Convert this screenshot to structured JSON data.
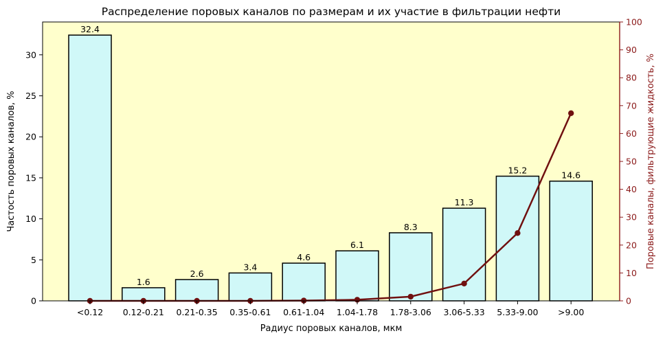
{
  "chart_data": {
    "type": "bar",
    "title": "Распределение поровых каналов по размерам и их участие в фильтрации нефти",
    "xlabel": "Радиус поровых каналов, мкм",
    "ylabel": "Частость поровых каналов, %",
    "y2label": "Поровые каналы, фильтрующие жидкость, %",
    "categories": [
      "<0.12",
      "0.12-0.21",
      "0.21-0.35",
      "0.35-0.61",
      "0.61-1.04",
      "1.04-1.78",
      "1.78-3.06",
      "3.06-5.33",
      "5.33-9.00",
      ">9.00"
    ],
    "bar_labels": [
      "32.4",
      "1.6",
      "2.6",
      "3.4",
      "4.6",
      "6.1",
      "8.3",
      "11.3",
      "15.2",
      "14.6"
    ],
    "ylim": [
      0,
      34
    ],
    "yticks": [
      "0",
      "5",
      "10",
      "15",
      "20",
      "25",
      "30"
    ],
    "y2lim": [
      0,
      100
    ],
    "y2ticks": [
      "0",
      "10",
      "20",
      "30",
      "40",
      "50",
      "60",
      "70",
      "80",
      "90",
      "100"
    ],
    "series": [
      {
        "type": "bar",
        "axis": "left",
        "values": [
          32.4,
          1.6,
          2.6,
          3.4,
          4.6,
          6.1,
          8.3,
          11.3,
          15.2,
          14.6
        ]
      },
      {
        "type": "line",
        "axis": "right",
        "values": [
          0,
          0,
          0,
          0,
          0.1,
          0.4,
          1.5,
          6.2,
          24.3,
          67.3
        ]
      }
    ],
    "colors": {
      "plot_bg": "#ffffcc",
      "bar_fill": "#d0f8f8",
      "bar_edge": "#000000",
      "line": "#701010",
      "right_axis": "#8b1a1a"
    },
    "grid": false
  }
}
